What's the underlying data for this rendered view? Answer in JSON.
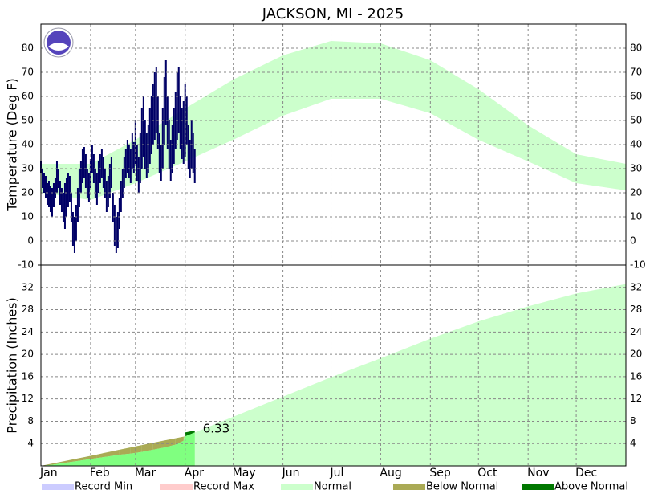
{
  "chart_data": [
    {
      "type": "range",
      "title": "JACKSON, MI - 2025",
      "y_label": "Temperature (Deg F)",
      "xlim": [
        1,
        366
      ],
      "xticks": [
        {
          "value": 1,
          "label": "Jan"
        },
        {
          "value": 32,
          "label": "Feb"
        },
        {
          "value": 60,
          "label": "Mar"
        },
        {
          "value": 91,
          "label": "Apr"
        },
        {
          "value": 121,
          "label": "May"
        },
        {
          "value": 152,
          "label": "Jun"
        },
        {
          "value": 182,
          "label": "Jul"
        },
        {
          "value": 213,
          "label": "Aug"
        },
        {
          "value": 244,
          "label": "Sep"
        },
        {
          "value": 274,
          "label": "Oct"
        },
        {
          "value": 305,
          "label": "Nov"
        },
        {
          "value": 335,
          "label": "Dec"
        }
      ],
      "ylim": [
        -10,
        90
      ],
      "yticks": [
        -10,
        0,
        10,
        20,
        30,
        40,
        50,
        60,
        70,
        80
      ],
      "grid": true,
      "normal_x": [
        1,
        32,
        60,
        91,
        121,
        152,
        182,
        213,
        244,
        274,
        305,
        335,
        366
      ],
      "normal_high": [
        32,
        32,
        42,
        55,
        67,
        77,
        83,
        82,
        75,
        63,
        48,
        36,
        32
      ],
      "normal_low": [
        20,
        17,
        24,
        33,
        42,
        52,
        59,
        59,
        53,
        42,
        33,
        24,
        21
      ],
      "normal_color": "#ccffcc",
      "color": "#000066",
      "x": [
        1,
        2,
        3,
        4,
        5,
        6,
        7,
        8,
        9,
        10,
        11,
        12,
        13,
        14,
        15,
        16,
        17,
        18,
        19,
        20,
        21,
        22,
        23,
        24,
        25,
        26,
        27,
        28,
        29,
        30,
        31,
        32,
        33,
        34,
        35,
        36,
        37,
        38,
        39,
        40,
        41,
        42,
        43,
        44,
        45,
        46,
        47,
        48,
        49,
        50,
        51,
        52,
        53,
        54,
        55,
        56,
        57,
        58,
        59,
        60,
        61,
        62,
        63,
        64,
        65,
        66,
        67,
        68,
        69,
        70,
        71,
        72,
        73,
        74,
        75,
        76,
        77,
        78,
        79,
        80,
        81,
        82,
        83,
        84,
        85,
        86,
        87,
        88,
        89,
        90,
        91,
        92,
        93,
        94,
        95,
        96,
        97
      ],
      "high": [
        33,
        30,
        28,
        27,
        24,
        25,
        23,
        22,
        24,
        26,
        33,
        30,
        25,
        22,
        20,
        24,
        26,
        28,
        27,
        20,
        12,
        10,
        15,
        22,
        30,
        33,
        38,
        39,
        36,
        30,
        28,
        34,
        40,
        36,
        30,
        28,
        33,
        36,
        38,
        35,
        30,
        25,
        27,
        32,
        35,
        20,
        15,
        10,
        12,
        18,
        25,
        30,
        35,
        38,
        42,
        40,
        38,
        45,
        41,
        50,
        40,
        35,
        45,
        55,
        60,
        50,
        45,
        48,
        55,
        60,
        65,
        70,
        72,
        60,
        45,
        40,
        55,
        68,
        75,
        60,
        50,
        42,
        48,
        55,
        62,
        70,
        72,
        60,
        55,
        58,
        65,
        60,
        48,
        42,
        50,
        45,
        38
      ],
      "low": [
        28,
        22,
        20,
        18,
        15,
        14,
        12,
        10,
        14,
        18,
        20,
        22,
        15,
        12,
        8,
        5,
        10,
        14,
        16,
        8,
        -2,
        -5,
        0,
        8,
        14,
        20,
        24,
        26,
        22,
        18,
        16,
        22,
        28,
        24,
        18,
        15,
        20,
        24,
        26,
        22,
        18,
        12,
        14,
        18,
        22,
        8,
        -2,
        -5,
        -3,
        5,
        12,
        18,
        22,
        26,
        28,
        26,
        24,
        30,
        28,
        32,
        25,
        20,
        24,
        30,
        35,
        30,
        26,
        28,
        32,
        36,
        40,
        42,
        45,
        38,
        28,
        25,
        30,
        40,
        48,
        38,
        30,
        25,
        28,
        32,
        38,
        42,
        45,
        38,
        34,
        32,
        35,
        40,
        30,
        26,
        30,
        28,
        24
      ]
    },
    {
      "type": "cumulative-area",
      "y_label": "Precipitation (Inches)",
      "xlim": [
        1,
        366
      ],
      "ylim": [
        0,
        36
      ],
      "yticks": [
        4,
        8,
        12,
        16,
        20,
        24,
        28,
        32
      ],
      "grid": true,
      "normal_x": [
        1,
        32,
        60,
        91,
        121,
        152,
        182,
        213,
        244,
        274,
        305,
        335,
        366
      ],
      "normal": [
        0,
        1.8,
        3.5,
        5.3,
        8.8,
        12.4,
        15.9,
        19.3,
        22.8,
        25.9,
        28.6,
        30.9,
        32.6
      ],
      "x": [
        1,
        8,
        15,
        22,
        29,
        36,
        43,
        50,
        57,
        64,
        71,
        78,
        85,
        90,
        91,
        97
      ],
      "observed": [
        0,
        0.2,
        0.5,
        0.8,
        1.1,
        1.4,
        1.7,
        2.0,
        2.2,
        2.5,
        2.9,
        3.3,
        3.8,
        4.5,
        6.0,
        6.33
      ],
      "observed_color": "#80ff80",
      "legend": [
        {
          "name": "Record Min",
          "color": "#ccccff"
        },
        {
          "name": "Record Max",
          "color": "#ffcccc"
        },
        {
          "name": "Normal",
          "color": "#ccffcc"
        },
        {
          "name": "Below Normal",
          "color": "#aaaa55"
        },
        {
          "name": "Above Normal",
          "color": "#007700"
        }
      ]
    }
  ]
}
